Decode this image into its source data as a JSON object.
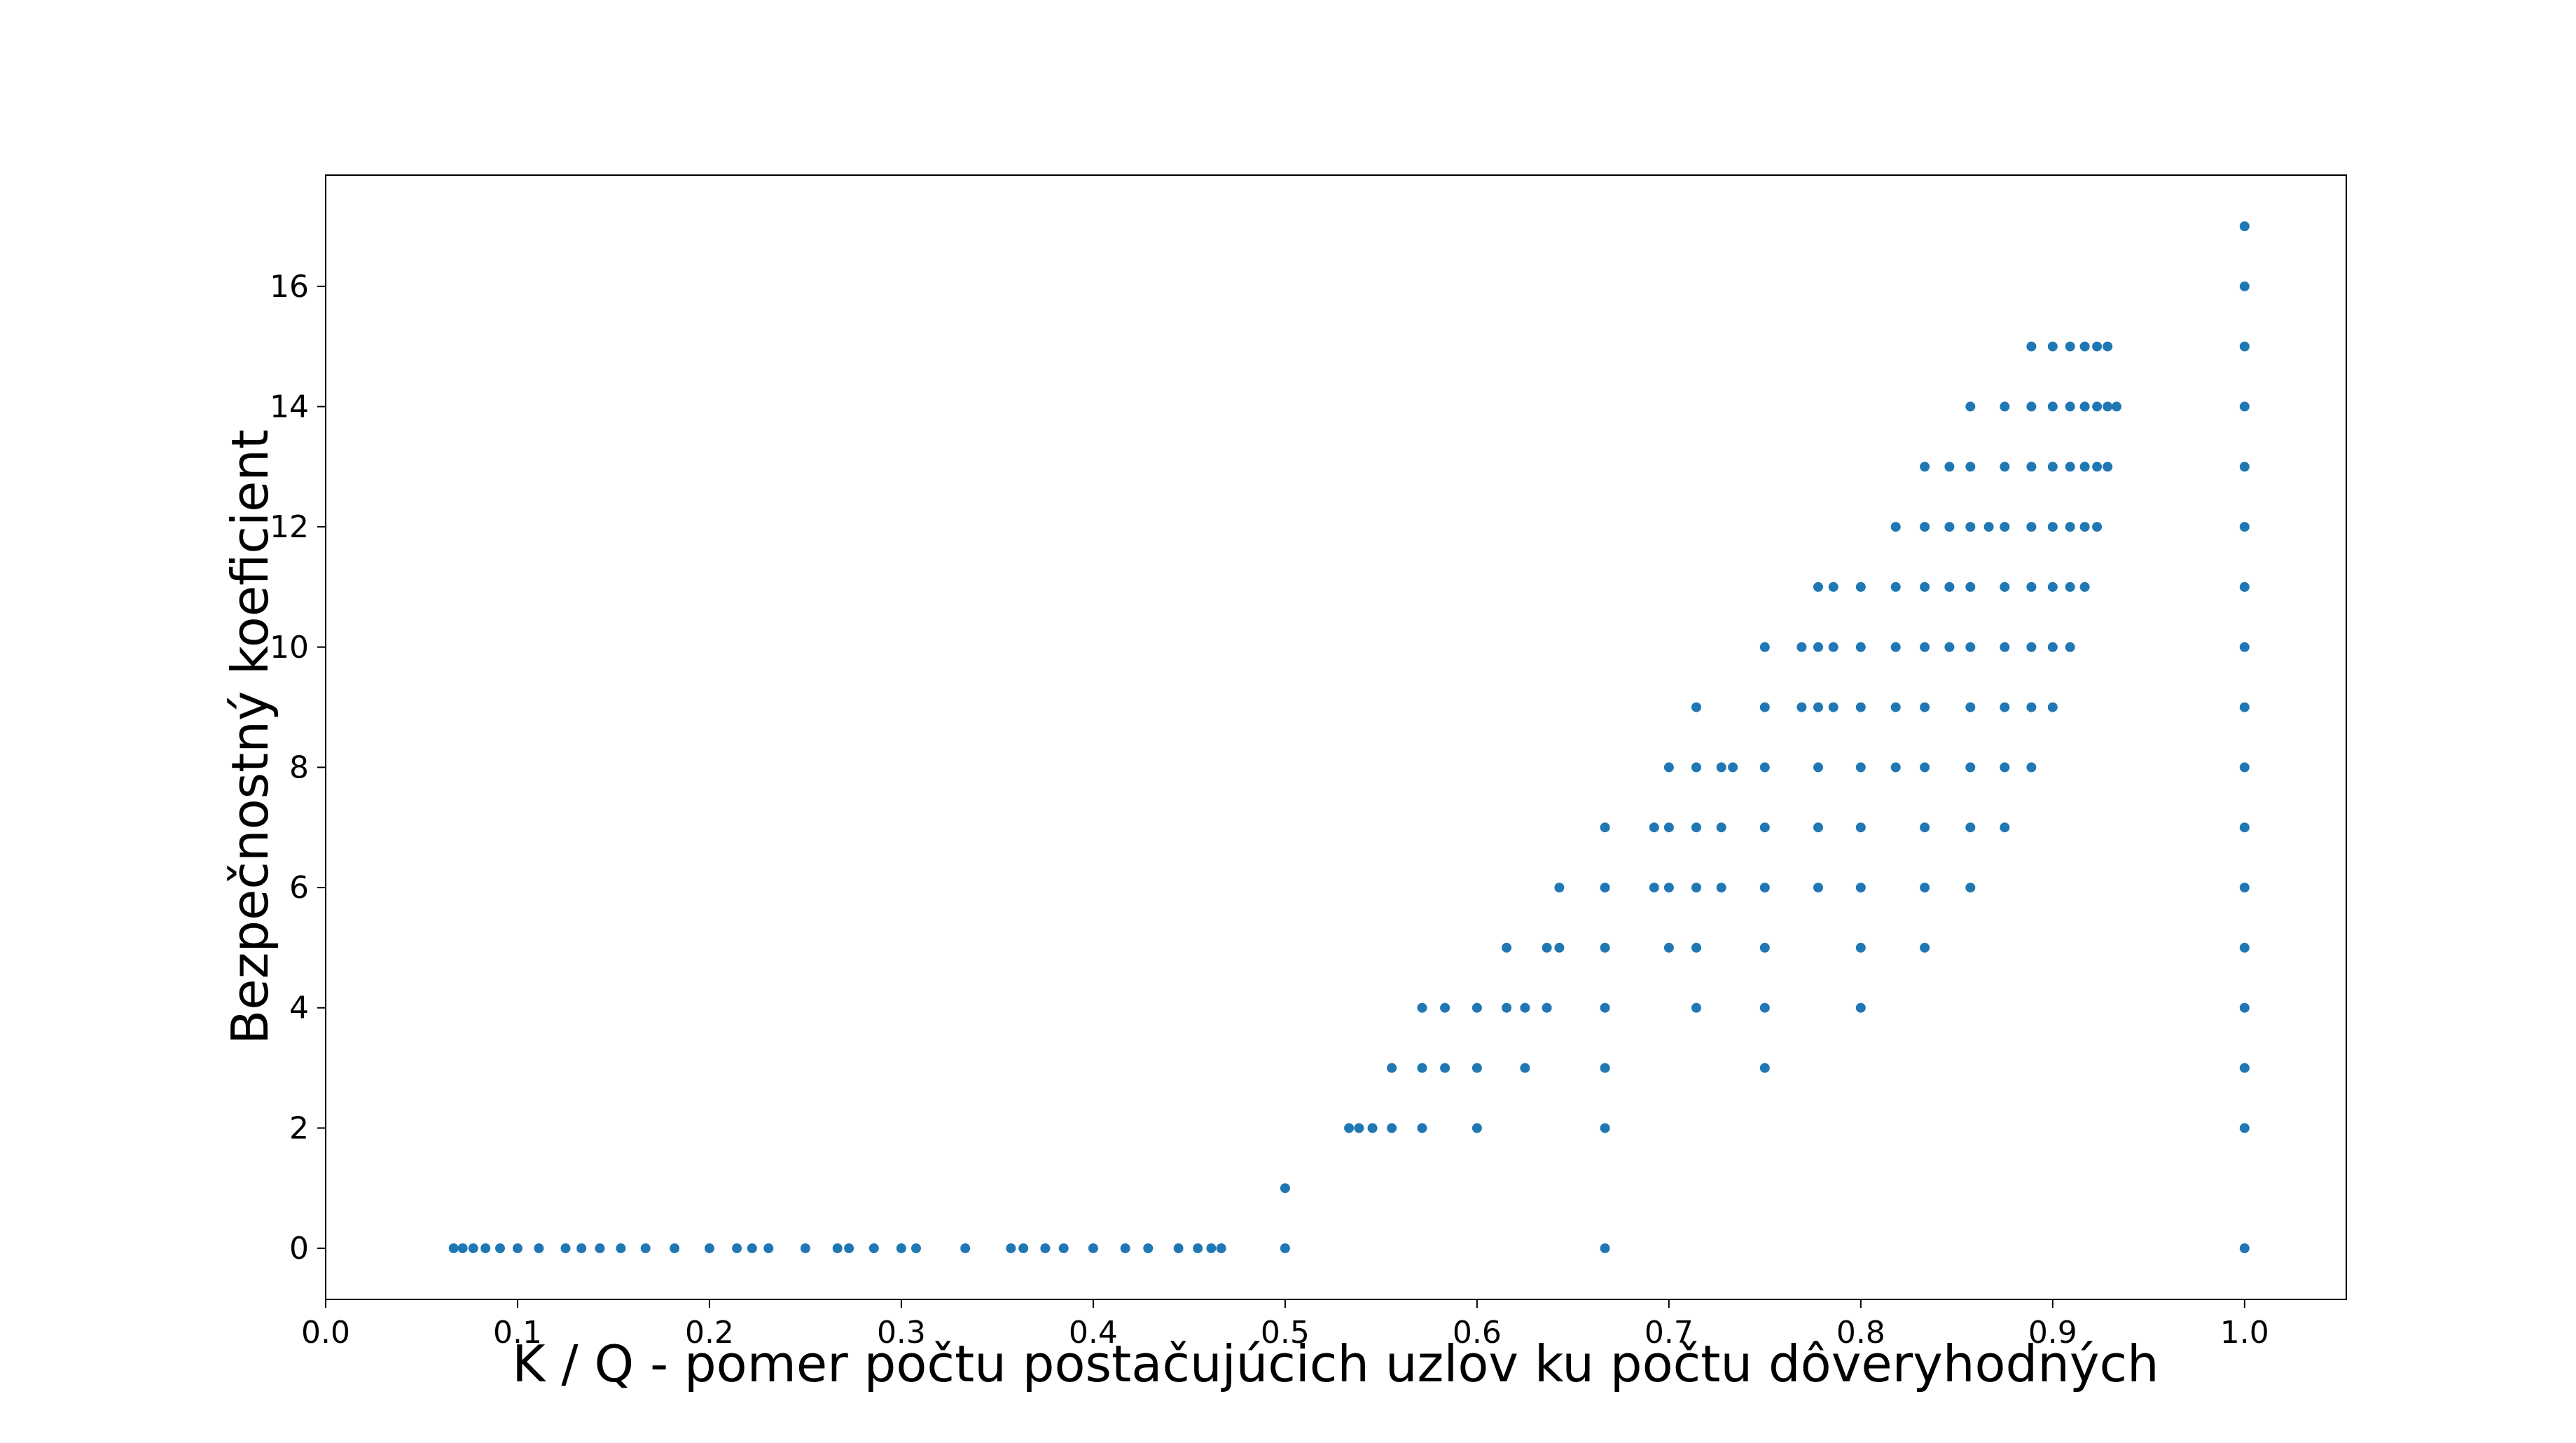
{
  "chart_data": {
    "type": "scatter",
    "title": "",
    "xlabel": "K / Q - pomer počtu postačujúcich uzlov ku počtu dôveryhodných",
    "ylabel": "Bezpečnostný koeficient",
    "xlim": [
      0.0,
      1.053
    ],
    "ylim": [
      -0.85,
      17.85
    ],
    "xticks": [
      "0.0",
      "0.1",
      "0.2",
      "0.3",
      "0.4",
      "0.5",
      "0.6",
      "0.7",
      "0.8",
      "0.9",
      "1.0"
    ],
    "yticks": [
      "0",
      "2",
      "4",
      "6",
      "8",
      "10",
      "12",
      "14",
      "16"
    ],
    "grid": false,
    "marker_color": "#1f77b4",
    "points": [
      [
        0.0667,
        0
      ],
      [
        0.0714,
        0
      ],
      [
        0.0769,
        0
      ],
      [
        0.0833,
        0
      ],
      [
        0.0909,
        0
      ],
      [
        0.1,
        0
      ],
      [
        0.1111,
        0
      ],
      [
        0.125,
        0
      ],
      [
        0.1333,
        0
      ],
      [
        0.1429,
        0
      ],
      [
        0.1538,
        0
      ],
      [
        0.1667,
        0
      ],
      [
        0.1818,
        0
      ],
      [
        0.2,
        0
      ],
      [
        0.2143,
        0
      ],
      [
        0.2222,
        0
      ],
      [
        0.2308,
        0
      ],
      [
        0.25,
        0
      ],
      [
        0.2667,
        0
      ],
      [
        0.2727,
        0
      ],
      [
        0.2857,
        0
      ],
      [
        0.3,
        0
      ],
      [
        0.3077,
        0
      ],
      [
        0.3333,
        0
      ],
      [
        0.3571,
        0
      ],
      [
        0.3636,
        0
      ],
      [
        0.375,
        0
      ],
      [
        0.3846,
        0
      ],
      [
        0.4,
        0
      ],
      [
        0.4167,
        0
      ],
      [
        0.4286,
        0
      ],
      [
        0.4444,
        0
      ],
      [
        0.4545,
        0
      ],
      [
        0.4615,
        0
      ],
      [
        0.4667,
        0
      ],
      [
        0.5,
        0
      ],
      [
        0.5,
        1
      ],
      [
        0.5333,
        2
      ],
      [
        0.5385,
        2
      ],
      [
        0.5455,
        2
      ],
      [
        0.5556,
        2
      ],
      [
        0.5556,
        3
      ],
      [
        0.5714,
        2
      ],
      [
        0.5714,
        3
      ],
      [
        0.5714,
        4
      ],
      [
        0.5833,
        3
      ],
      [
        0.5833,
        4
      ],
      [
        0.6,
        2
      ],
      [
        0.6,
        3
      ],
      [
        0.6,
        4
      ],
      [
        0.6154,
        4
      ],
      [
        0.6154,
        5
      ],
      [
        0.625,
        3
      ],
      [
        0.625,
        4
      ],
      [
        0.6364,
        4
      ],
      [
        0.6364,
        5
      ],
      [
        0.6429,
        5
      ],
      [
        0.6429,
        6
      ],
      [
        0.6667,
        0
      ],
      [
        0.6667,
        2
      ],
      [
        0.6667,
        3
      ],
      [
        0.6667,
        4
      ],
      [
        0.6667,
        5
      ],
      [
        0.6667,
        6
      ],
      [
        0.6667,
        7
      ],
      [
        0.6923,
        6
      ],
      [
        0.6923,
        7
      ],
      [
        0.7,
        5
      ],
      [
        0.7,
        6
      ],
      [
        0.7,
        7
      ],
      [
        0.7,
        8
      ],
      [
        0.7143,
        4
      ],
      [
        0.7143,
        5
      ],
      [
        0.7143,
        6
      ],
      [
        0.7143,
        7
      ],
      [
        0.7143,
        8
      ],
      [
        0.7143,
        9
      ],
      [
        0.7273,
        6
      ],
      [
        0.7273,
        7
      ],
      [
        0.7273,
        8
      ],
      [
        0.7333,
        8
      ],
      [
        0.75,
        3
      ],
      [
        0.75,
        4
      ],
      [
        0.75,
        5
      ],
      [
        0.75,
        6
      ],
      [
        0.75,
        7
      ],
      [
        0.75,
        8
      ],
      [
        0.75,
        9
      ],
      [
        0.75,
        10
      ],
      [
        0.7692,
        9
      ],
      [
        0.7692,
        10
      ],
      [
        0.7778,
        6
      ],
      [
        0.7778,
        7
      ],
      [
        0.7778,
        8
      ],
      [
        0.7778,
        9
      ],
      [
        0.7778,
        10
      ],
      [
        0.7778,
        11
      ],
      [
        0.7857,
        9
      ],
      [
        0.7857,
        10
      ],
      [
        0.7857,
        11
      ],
      [
        0.8,
        4
      ],
      [
        0.8,
        5
      ],
      [
        0.8,
        6
      ],
      [
        0.8,
        7
      ],
      [
        0.8,
        8
      ],
      [
        0.8,
        9
      ],
      [
        0.8,
        10
      ],
      [
        0.8,
        11
      ],
      [
        0.8182,
        8
      ],
      [
        0.8182,
        9
      ],
      [
        0.8182,
        10
      ],
      [
        0.8182,
        11
      ],
      [
        0.8182,
        12
      ],
      [
        0.8333,
        5
      ],
      [
        0.8333,
        6
      ],
      [
        0.8333,
        7
      ],
      [
        0.8333,
        8
      ],
      [
        0.8333,
        9
      ],
      [
        0.8333,
        10
      ],
      [
        0.8333,
        11
      ],
      [
        0.8333,
        12
      ],
      [
        0.8333,
        13
      ],
      [
        0.8462,
        10
      ],
      [
        0.8462,
        11
      ],
      [
        0.8462,
        12
      ],
      [
        0.8462,
        13
      ],
      [
        0.8571,
        6
      ],
      [
        0.8571,
        7
      ],
      [
        0.8571,
        8
      ],
      [
        0.8571,
        9
      ],
      [
        0.8571,
        10
      ],
      [
        0.8571,
        11
      ],
      [
        0.8571,
        12
      ],
      [
        0.8571,
        13
      ],
      [
        0.8571,
        14
      ],
      [
        0.8667,
        12
      ],
      [
        0.875,
        7
      ],
      [
        0.875,
        8
      ],
      [
        0.875,
        9
      ],
      [
        0.875,
        10
      ],
      [
        0.875,
        11
      ],
      [
        0.875,
        12
      ],
      [
        0.875,
        13
      ],
      [
        0.875,
        14
      ],
      [
        0.8889,
        8
      ],
      [
        0.8889,
        9
      ],
      [
        0.8889,
        10
      ],
      [
        0.8889,
        11
      ],
      [
        0.8889,
        12
      ],
      [
        0.8889,
        13
      ],
      [
        0.8889,
        14
      ],
      [
        0.8889,
        15
      ],
      [
        0.9,
        9
      ],
      [
        0.9,
        10
      ],
      [
        0.9,
        11
      ],
      [
        0.9,
        12
      ],
      [
        0.9,
        13
      ],
      [
        0.9,
        14
      ],
      [
        0.9,
        15
      ],
      [
        0.9091,
        10
      ],
      [
        0.9091,
        11
      ],
      [
        0.9091,
        12
      ],
      [
        0.9091,
        13
      ],
      [
        0.9091,
        14
      ],
      [
        0.9091,
        15
      ],
      [
        0.9167,
        11
      ],
      [
        0.9167,
        12
      ],
      [
        0.9167,
        13
      ],
      [
        0.9167,
        14
      ],
      [
        0.9167,
        15
      ],
      [
        0.9231,
        12
      ],
      [
        0.9231,
        13
      ],
      [
        0.9231,
        14
      ],
      [
        0.9231,
        15
      ],
      [
        0.9286,
        13
      ],
      [
        0.9286,
        14
      ],
      [
        0.9286,
        15
      ],
      [
        0.9333,
        14
      ],
      [
        1.0,
        0
      ],
      [
        1.0,
        2
      ],
      [
        1.0,
        3
      ],
      [
        1.0,
        4
      ],
      [
        1.0,
        5
      ],
      [
        1.0,
        6
      ],
      [
        1.0,
        7
      ],
      [
        1.0,
        8
      ],
      [
        1.0,
        9
      ],
      [
        1.0,
        10
      ],
      [
        1.0,
        11
      ],
      [
        1.0,
        12
      ],
      [
        1.0,
        13
      ],
      [
        1.0,
        14
      ],
      [
        1.0,
        15
      ],
      [
        1.0,
        16
      ],
      [
        1.0,
        17
      ]
    ]
  }
}
